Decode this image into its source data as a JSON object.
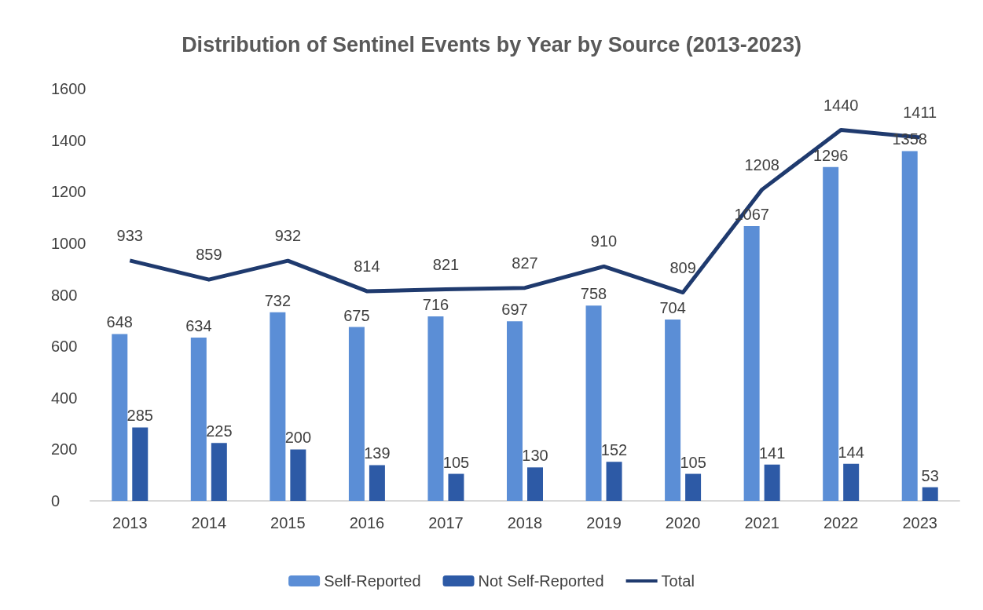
{
  "chart_data": {
    "type": "bar",
    "title": "Distribution of Sentinel Events by Year by Source (2013-2023)",
    "categories": [
      "2013",
      "2014",
      "2015",
      "2016",
      "2017",
      "2018",
      "2019",
      "2020",
      "2021",
      "2022",
      "2023"
    ],
    "series": [
      {
        "name": "Self-Reported",
        "color": "#5b8ed6",
        "values": [
          648,
          634,
          732,
          675,
          716,
          697,
          758,
          704,
          1067,
          1296,
          1358
        ]
      },
      {
        "name": "Not Self-Reported",
        "color": "#2d5aa6",
        "values": [
          285,
          225,
          200,
          139,
          105,
          130,
          152,
          105,
          141,
          144,
          53
        ]
      },
      {
        "name": "Total",
        "type": "line",
        "color": "#1f3a6e",
        "values": [
          933,
          859,
          932,
          814,
          821,
          827,
          910,
          809,
          1208,
          1440,
          1411
        ]
      }
    ],
    "ylim": [
      0,
      1600
    ],
    "yticks": [
      0,
      200,
      400,
      600,
      800,
      1000,
      1200,
      1400,
      1600
    ],
    "grid": false,
    "legend": "bottom",
    "data_labels": true,
    "marker": "none"
  }
}
